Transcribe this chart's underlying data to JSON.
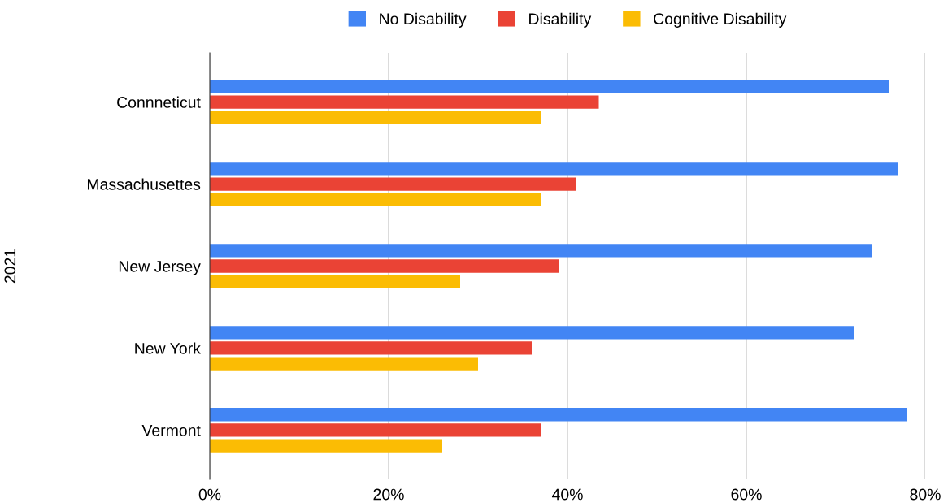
{
  "chart_data": {
    "type": "bar",
    "orientation": "horizontal",
    "ylabel": "2021",
    "categories": [
      "Connneticut",
      "Massachusettes",
      "New Jersey",
      "New York",
      "Vermont"
    ],
    "series": [
      {
        "name": "No Disability",
        "color": "#4285f4",
        "values": [
          76,
          77,
          74,
          72,
          78
        ]
      },
      {
        "name": "Disability",
        "color": "#ea4335",
        "values": [
          43.5,
          41,
          39,
          36,
          37
        ]
      },
      {
        "name": "Cognitive Disability",
        "color": "#fbbc04",
        "values": [
          37,
          37,
          28,
          30,
          26
        ]
      }
    ],
    "xlim": [
      0,
      80
    ],
    "xticks": [
      {
        "value": 0,
        "label": "0%"
      },
      {
        "value": 20,
        "label": "20%"
      },
      {
        "value": 40,
        "label": "40%"
      },
      {
        "value": 60,
        "label": "60%"
      },
      {
        "value": 80,
        "label": "80%"
      }
    ],
    "grid": "x",
    "legend": "top"
  }
}
